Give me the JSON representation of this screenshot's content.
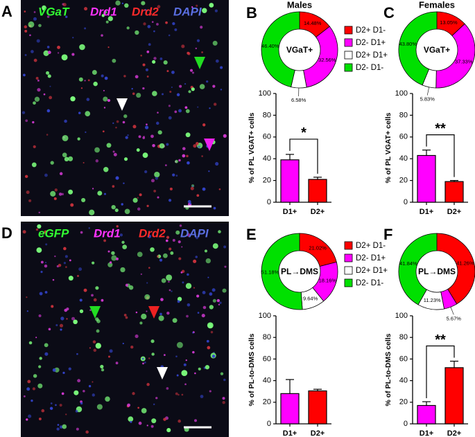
{
  "images": [
    {
      "panel": "A",
      "labels": [
        "VGaT",
        "Drd1",
        "Drd2",
        "DAPI"
      ]
    },
    {
      "panel": "D",
      "labels": [
        "eGFP",
        "Drd1",
        "Drd2",
        "DAPI"
      ]
    }
  ],
  "chart_data": [
    {
      "type": "pie",
      "panel": "B",
      "title": "Males",
      "center_label": "VGaT+",
      "categories": [
        "D2+ D1-",
        "D2- D1+",
        "D2+ D1+",
        "D2- D1-"
      ],
      "values": [
        14.48,
        32.56,
        6.58,
        46.4
      ],
      "value_labels": [
        "14.48%",
        "32.56%",
        "6.58%",
        "46.40%"
      ],
      "colors": [
        "#ff0000",
        "#ff00ff",
        "#ffffff",
        "#00e000"
      ]
    },
    {
      "type": "bar",
      "ylabel": "% of PL VGAT+ cells",
      "categories": [
        "D1+",
        "D2+"
      ],
      "values": [
        39,
        21
      ],
      "errors": [
        5,
        2
      ],
      "colors": [
        "#ff00ff",
        "#ff0000"
      ],
      "ylim": [
        0,
        100
      ],
      "yticks": [
        0,
        20,
        40,
        60,
        80,
        100
      ],
      "significance": "*"
    },
    {
      "type": "pie",
      "panel": "C",
      "title": "Females",
      "center_label": "VGaT+",
      "values": [
        13.05,
        37.33,
        5.83,
        43.8
      ],
      "value_labels": [
        "13.05%",
        "37.33%",
        "5.83%",
        "43.80%"
      ],
      "colors": [
        "#ff0000",
        "#ff00ff",
        "#ffffff",
        "#00e000"
      ]
    },
    {
      "type": "bar",
      "ylabel": "% of PL VGAT+ cells",
      "categories": [
        "D1+",
        "D2+"
      ],
      "values": [
        43,
        19
      ],
      "errors": [
        5,
        1
      ],
      "colors": [
        "#ff00ff",
        "#ff0000"
      ],
      "ylim": [
        0,
        100
      ],
      "yticks": [
        0,
        20,
        40,
        60,
        80,
        100
      ],
      "significance": "**"
    },
    {
      "type": "pie",
      "panel": "E",
      "center_label": "PL→DMS",
      "categories": [
        "D2+ D1-",
        "D2- D1+",
        "D2+ D1+",
        "D2- D1-"
      ],
      "values": [
        21.02,
        18.16,
        9.64,
        51.18
      ],
      "value_labels": [
        "21.02%",
        "18.16%",
        "9.64%",
        "51.18%"
      ],
      "colors": [
        "#ff0000",
        "#ff00ff",
        "#ffffff",
        "#00e000"
      ]
    },
    {
      "type": "bar",
      "ylabel": "% of PL-to-DMS cells",
      "categories": [
        "D1+",
        "D2+"
      ],
      "values": [
        28,
        30.5
      ],
      "errors": [
        13,
        1.5
      ],
      "colors": [
        "#ff00ff",
        "#ff0000"
      ],
      "ylim": [
        0,
        100
      ],
      "yticks": [
        0,
        20,
        40,
        60,
        80,
        100
      ]
    },
    {
      "type": "pie",
      "panel": "F",
      "center_label": "PL→DMS",
      "values": [
        41.26,
        5.67,
        11.23,
        41.84
      ],
      "value_labels": [
        "41.26%",
        "5.67%",
        "11.23%",
        "41.84%"
      ],
      "colors": [
        "#ff0000",
        "#ff00ff",
        "#ffffff",
        "#00e000"
      ]
    },
    {
      "type": "bar",
      "ylabel": "% of PL-to-DMS cells",
      "categories": [
        "D1+",
        "D2+"
      ],
      "values": [
        17,
        52
      ],
      "errors": [
        3.5,
        6
      ],
      "colors": [
        "#ff00ff",
        "#ff0000"
      ],
      "ylim": [
        0,
        100
      ],
      "yticks": [
        0,
        20,
        40,
        60,
        80,
        100
      ],
      "significance": "**"
    }
  ]
}
